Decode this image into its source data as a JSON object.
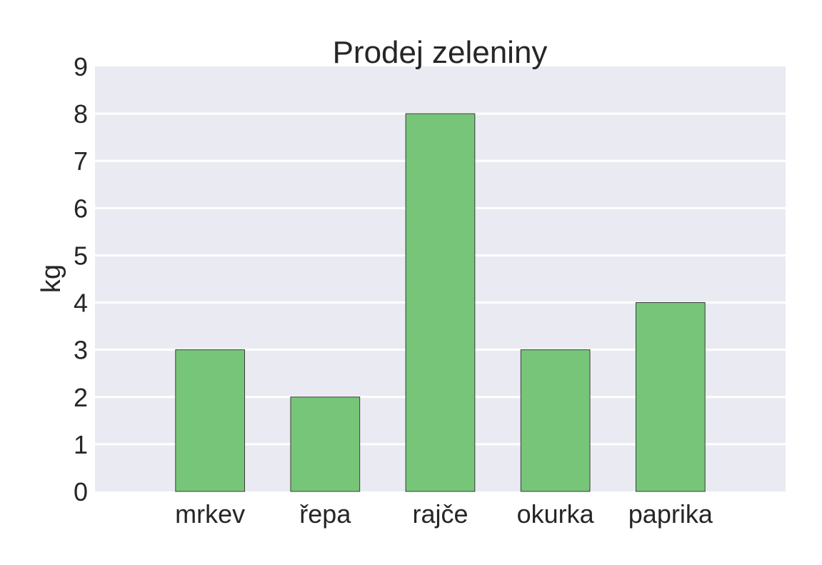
{
  "chart_data": {
    "type": "bar",
    "title": "Prodej zeleniny",
    "xlabel": "",
    "ylabel": "kg",
    "categories": [
      "mrkev",
      "řepa",
      "rajče",
      "okurka",
      "paprika"
    ],
    "values": [
      3,
      2,
      8,
      3,
      4
    ],
    "ylim": [
      0,
      9
    ],
    "yticks": [
      0,
      1,
      2,
      3,
      4,
      5,
      6,
      7,
      8,
      9
    ],
    "xlim": [
      -1,
      5
    ],
    "grid": true,
    "legend": "none",
    "colors": {
      "bar": "#77c579",
      "bar_edge": "#3a3a3a",
      "plot_background": "#eaeaf2",
      "grid": "#ffffff",
      "text": "#262626"
    }
  }
}
